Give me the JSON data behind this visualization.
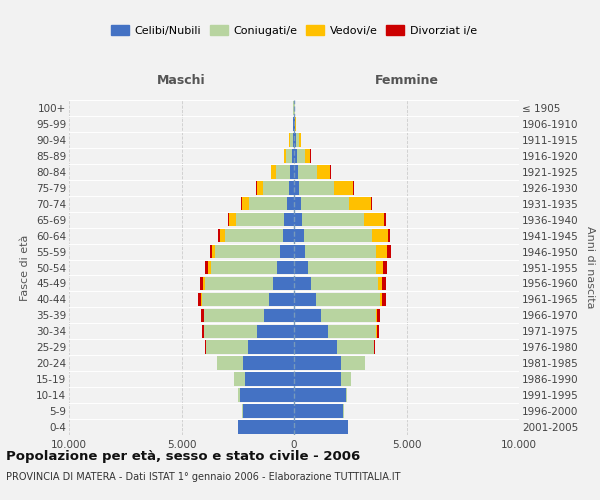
{
  "age_groups_bottom_to_top": [
    "0-4",
    "5-9",
    "10-14",
    "15-19",
    "20-24",
    "25-29",
    "30-34",
    "35-39",
    "40-44",
    "45-49",
    "50-54",
    "55-59",
    "60-64",
    "65-69",
    "70-74",
    "75-79",
    "80-84",
    "85-89",
    "90-94",
    "95-99",
    "100+"
  ],
  "birth_years_bottom_to_top": [
    "2001-2005",
    "1996-2000",
    "1991-1995",
    "1986-1990",
    "1981-1985",
    "1976-1980",
    "1971-1975",
    "1966-1970",
    "1961-1965",
    "1956-1960",
    "1951-1955",
    "1946-1950",
    "1941-1945",
    "1936-1940",
    "1931-1935",
    "1926-1930",
    "1921-1925",
    "1916-1920",
    "1911-1915",
    "1906-1910",
    "≤ 1905"
  ],
  "male_celibe": [
    2480,
    2280,
    2380,
    2180,
    2280,
    2050,
    1650,
    1340,
    1120,
    920,
    760,
    640,
    510,
    430,
    330,
    230,
    160,
    100,
    60,
    25,
    18
  ],
  "male_coniugato": [
    3,
    15,
    90,
    480,
    1150,
    1850,
    2350,
    2650,
    2950,
    3050,
    2950,
    2850,
    2550,
    2150,
    1650,
    1150,
    660,
    260,
    110,
    18,
    8
  ],
  "male_vedovo": [
    0,
    0,
    0,
    1,
    2,
    4,
    12,
    28,
    45,
    65,
    95,
    145,
    240,
    290,
    310,
    265,
    190,
    90,
    35,
    8,
    2
  ],
  "male_divorziato": [
    0,
    0,
    0,
    4,
    9,
    38,
    75,
    115,
    145,
    155,
    145,
    115,
    78,
    58,
    48,
    28,
    18,
    8,
    4,
    2,
    1
  ],
  "female_nubile": [
    2390,
    2190,
    2290,
    2090,
    2090,
    1890,
    1490,
    1190,
    970,
    770,
    610,
    510,
    430,
    370,
    290,
    210,
    170,
    120,
    90,
    35,
    18
  ],
  "female_coniugata": [
    2,
    12,
    70,
    430,
    1050,
    1650,
    2150,
    2450,
    2850,
    2950,
    3050,
    3150,
    3050,
    2750,
    2150,
    1550,
    860,
    360,
    140,
    28,
    8
  ],
  "female_vedova": [
    0,
    0,
    0,
    1,
    2,
    9,
    28,
    55,
    95,
    170,
    290,
    490,
    680,
    880,
    980,
    880,
    580,
    240,
    75,
    18,
    4
  ],
  "female_divorziata": [
    0,
    0,
    0,
    4,
    14,
    48,
    88,
    135,
    175,
    195,
    195,
    165,
    128,
    98,
    68,
    48,
    28,
    14,
    7,
    2,
    1
  ],
  "colors": {
    "celibe": "#4472c4",
    "coniugato": "#b8d4a0",
    "vedovo": "#ffc000",
    "divorziato": "#cc0000"
  },
  "bg_color": "#f2f2f2",
  "xlim": 10000,
  "xlabel_left": "Maschi",
  "xlabel_right": "Femmine",
  "ylabel_left": "Fasce di età",
  "ylabel_right": "Anni di nascita",
  "title": "Popolazione per età, sesso e stato civile - 2006",
  "subtitle": "PROVINCIA DI MATERA - Dati ISTAT 1° gennaio 2006 - Elaborazione TUTTITALIA.IT",
  "legend_labels": [
    "Celibi/Nubili",
    "Coniugati/e",
    "Vedovi/e",
    "Divorziat i/e"
  ],
  "xtick_vals": [
    -10000,
    -5000,
    0,
    5000,
    10000
  ],
  "xtick_labels": [
    "10.000",
    "5.000",
    "0",
    "5.000",
    "10.000"
  ]
}
